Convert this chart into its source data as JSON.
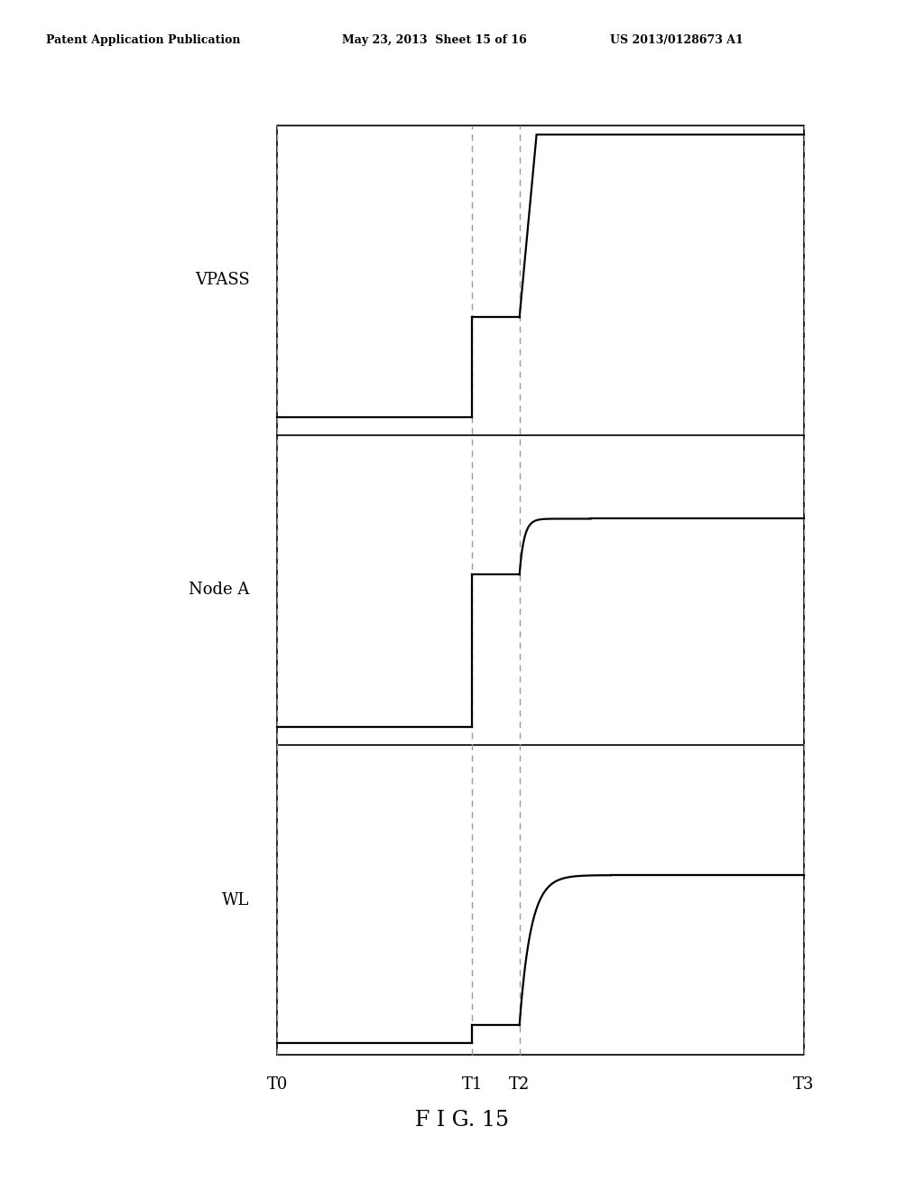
{
  "title_left": "Patent Application Publication",
  "title_mid": "May 23, 2013  Sheet 15 of 16",
  "title_right": "US 2013/0128673 A1",
  "fig_caption": "F I G. 15",
  "labels": [
    "VPASS",
    "Node A",
    "WL"
  ],
  "time_labels": [
    "T0",
    "T1",
    "T2",
    "T3"
  ],
  "background_color": "#ffffff",
  "line_color": "#000000",
  "dashed_color": "#999999",
  "t0": 0.0,
  "t1": 0.37,
  "t2": 0.46,
  "t3": 1.0
}
